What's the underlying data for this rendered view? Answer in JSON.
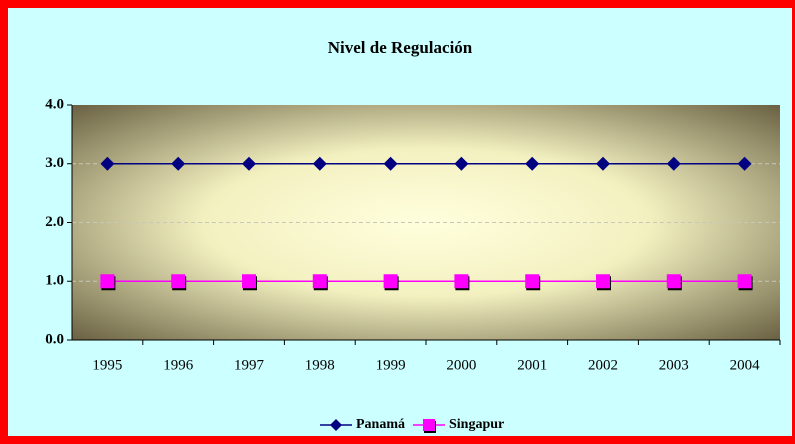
{
  "chart_data": {
    "type": "line",
    "title": "Nivel de Regulación",
    "categories": [
      "1995",
      "1996",
      "1997",
      "1998",
      "1999",
      "2000",
      "2001",
      "2002",
      "2003",
      "2004"
    ],
    "series": [
      {
        "name": "Panamá",
        "color": "#000080",
        "marker": "diamond",
        "values": [
          3,
          3,
          3,
          3,
          3,
          3,
          3,
          3,
          3,
          3
        ]
      },
      {
        "name": "Singapur",
        "color": "#ff00ff",
        "marker": "square",
        "values": [
          1,
          1,
          1,
          1,
          1,
          1,
          1,
          1,
          1,
          1
        ]
      }
    ],
    "ylim": [
      0,
      4
    ],
    "yticks": [
      {
        "value": 0,
        "label": "0.0"
      },
      {
        "value": 1,
        "label": "1.0"
      },
      {
        "value": 2,
        "label": "2.0"
      },
      {
        "value": 3,
        "label": "3.0"
      },
      {
        "value": 4,
        "label": "4.0"
      }
    ],
    "grid": true,
    "legend": "bottom"
  }
}
